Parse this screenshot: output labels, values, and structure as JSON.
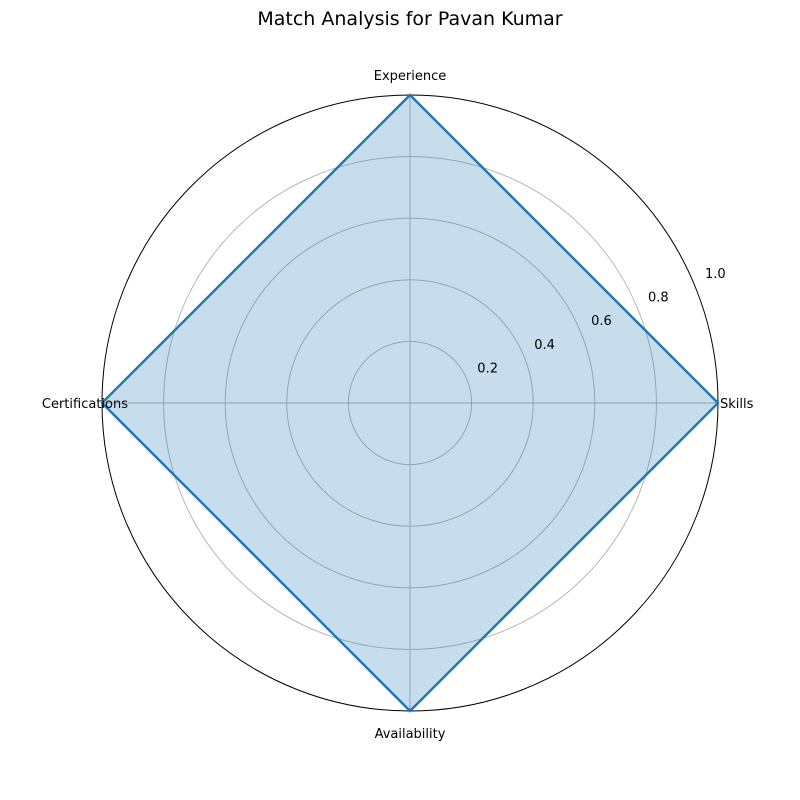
{
  "chart_data": {
    "type": "radar",
    "title": "Match Analysis for Pavan Kumar",
    "categories": [
      "Skills",
      "Experience",
      "Certifications",
      "Availability"
    ],
    "series": [
      {
        "values": [
          1.0,
          1.0,
          1.0,
          1.0
        ]
      }
    ],
    "rlim": [
      0,
      1.0
    ],
    "r_ticks": [
      "0.2",
      "0.4",
      "0.6",
      "0.8",
      "1.0"
    ],
    "grid": true,
    "colors": {
      "line": "#1f77b4",
      "fill": "#1f77b4",
      "grid": "#b0b0b0",
      "frame": "#000000"
    }
  }
}
